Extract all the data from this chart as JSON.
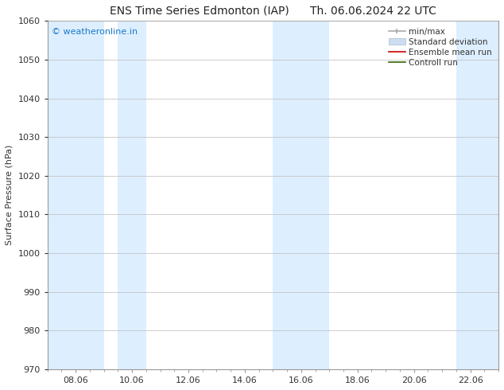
{
  "title": "ENS Time Series Edmonton (IAP)      Th. 06.06.2024 22 UTC",
  "ylabel": "Surface Pressure (hPa)",
  "ylim": [
    970,
    1060
  ],
  "yticks": [
    970,
    980,
    990,
    1000,
    1010,
    1020,
    1030,
    1040,
    1050,
    1060
  ],
  "xtick_labels": [
    "08.06",
    "10.06",
    "12.06",
    "14.06",
    "16.06",
    "18.06",
    "20.06",
    "22.06"
  ],
  "xtick_positions": [
    1,
    3,
    5,
    7,
    9,
    11,
    13,
    15
  ],
  "xmin": 0,
  "xmax": 16,
  "shaded_bands": [
    {
      "x_start": 0.0,
      "x_end": 2.0
    },
    {
      "x_start": 2.5,
      "x_end": 3.5
    },
    {
      "x_start": 8.0,
      "x_end": 10.0
    },
    {
      "x_start": 14.5,
      "x_end": 16.0
    }
  ],
  "shade_color": "#ddeeff",
  "watermark_text": "© weatheronline.in",
  "watermark_color": "#1a7ac8",
  "bg_color": "#ffffff",
  "grid_color": "#bbbbbb",
  "tick_label_color": "#333333",
  "title_color": "#222222",
  "font_size_title": 10,
  "font_size_axis": 8,
  "font_size_tick": 8,
  "font_size_legend": 7.5,
  "font_size_watermark": 8
}
